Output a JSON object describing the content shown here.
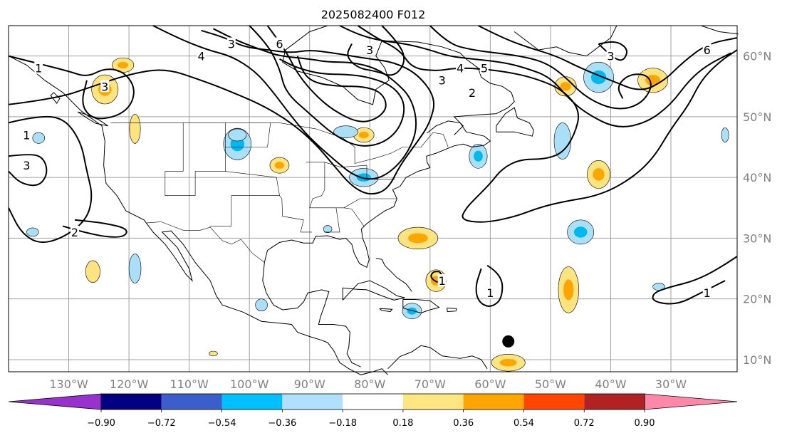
{
  "title": "2025082400 F012",
  "map": {
    "lon_range": [
      -140,
      -19
    ],
    "lat_range": [
      8,
      65
    ],
    "lon_ticks": [
      {
        "value": -130,
        "label": "130°W"
      },
      {
        "value": -120,
        "label": "120°W"
      },
      {
        "value": -110,
        "label": "110°W"
      },
      {
        "value": -100,
        "label": "100°W"
      },
      {
        "value": -90,
        "label": "90°W"
      },
      {
        "value": -80,
        "label": "80°W"
      },
      {
        "value": -70,
        "label": "70°W"
      },
      {
        "value": -60,
        "label": "60°W"
      },
      {
        "value": -50,
        "label": "50°W"
      },
      {
        "value": -40,
        "label": "40°W"
      },
      {
        "value": -30,
        "label": "30°W"
      }
    ],
    "lat_ticks": [
      {
        "value": 60,
        "label": "60°N"
      },
      {
        "value": 50,
        "label": "50°N"
      },
      {
        "value": 40,
        "label": "40°N"
      },
      {
        "value": 30,
        "label": "30°N"
      },
      {
        "value": 20,
        "label": "20°N"
      },
      {
        "value": 10,
        "label": "10°N"
      }
    ],
    "grid": true,
    "marker": {
      "lon": -57,
      "lat": 13,
      "color": "#000000"
    },
    "contour_labels": [
      {
        "text": "1",
        "lon": -135,
        "lat": 58
      },
      {
        "text": "3",
        "lon": -124,
        "lat": 55
      },
      {
        "text": "1",
        "lon": -137,
        "lat": 47
      },
      {
        "text": "3",
        "lon": -137,
        "lat": 42
      },
      {
        "text": "2",
        "lon": -129,
        "lat": 31
      },
      {
        "text": "4",
        "lon": -108,
        "lat": 60
      },
      {
        "text": "3",
        "lon": -103,
        "lat": 62
      },
      {
        "text": "6",
        "lon": -95,
        "lat": 62
      },
      {
        "text": "3",
        "lon": -80,
        "lat": 61
      },
      {
        "text": "3",
        "lon": -68,
        "lat": 56
      },
      {
        "text": "4",
        "lon": -65,
        "lat": 58
      },
      {
        "text": "5",
        "lon": -61,
        "lat": 58
      },
      {
        "text": "2",
        "lon": -63,
        "lat": 54
      },
      {
        "text": "3",
        "lon": -40,
        "lat": 60
      },
      {
        "text": "6",
        "lon": -24,
        "lat": 61
      },
      {
        "text": "1",
        "lon": -68,
        "lat": 23
      },
      {
        "text": "1",
        "lon": -60,
        "lat": 21
      },
      {
        "text": "1",
        "lon": -24,
        "lat": 21
      }
    ],
    "shading_colors": {
      "neg_light": "#aadff8",
      "neg_mid": "#00b8ee",
      "pos_light": "#fde47f",
      "pos_mid": "#ffa500",
      "outline": "#000000",
      "land_outline": "#000000",
      "grid": "#a0a0a0"
    }
  },
  "colorbar": {
    "levels": [
      "−0.90",
      "−0.72",
      "−0.54",
      "−0.36",
      "−0.18",
      "0.18",
      "0.36",
      "0.54",
      "0.72",
      "0.90"
    ],
    "colors": [
      "#9932cc",
      "#000080",
      "#3a5fcd",
      "#00bfff",
      "#b0e0ff",
      "#ffffff",
      "#ffe680",
      "#ffa500",
      "#ff4500",
      "#b22222",
      "#ff88aa"
    ]
  }
}
